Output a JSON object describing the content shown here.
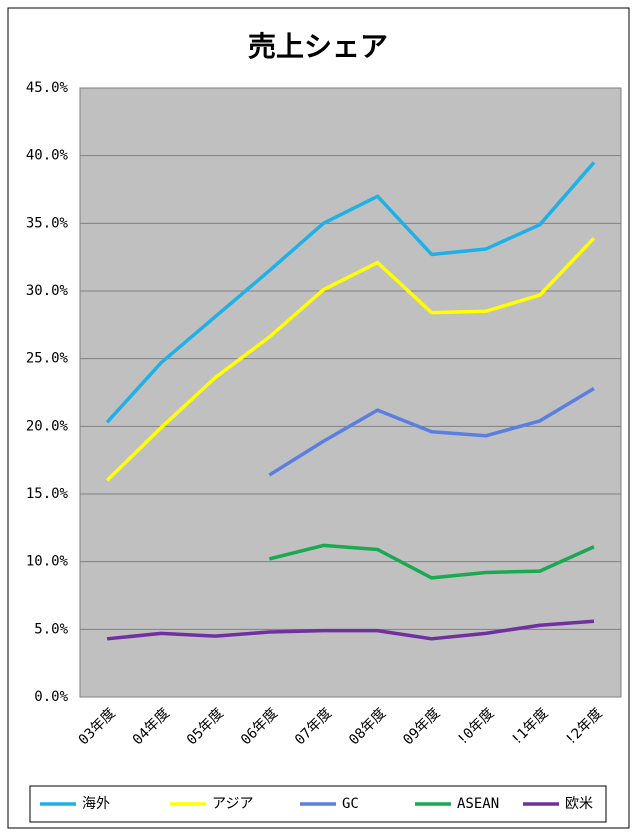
{
  "chart_data": {
    "type": "line",
    "title": "売上シェア",
    "categories": [
      "03年度",
      "04年度",
      "05年度",
      "06年度",
      "07年度",
      "08年度",
      "09年度",
      "!0年度",
      "!1年度",
      "!2年度"
    ],
    "series": [
      {
        "name": "海外",
        "color": "#1fb0e6",
        "values": [
          20.3,
          24.7,
          28.1,
          31.5,
          35.0,
          37.0,
          32.7,
          33.1,
          34.9,
          39.5
        ]
      },
      {
        "name": "アジア",
        "color": "#ffff00",
        "values": [
          16.0,
          19.9,
          23.6,
          26.6,
          30.1,
          32.1,
          28.4,
          28.5,
          29.7,
          33.9
        ]
      },
      {
        "name": "GC",
        "color": "#5b7fe0",
        "values": [
          null,
          null,
          null,
          16.4,
          18.9,
          21.2,
          19.6,
          19.3,
          20.4,
          22.8
        ]
      },
      {
        "name": "ASEAN",
        "color": "#1aa850",
        "values": [
          null,
          null,
          null,
          10.2,
          11.2,
          10.9,
          8.8,
          9.2,
          9.3,
          11.1
        ]
      },
      {
        "name": "欧米",
        "color": "#7030a0",
        "values": [
          4.3,
          4.7,
          4.5,
          4.8,
          4.9,
          4.9,
          4.3,
          4.7,
          5.3,
          5.6
        ]
      }
    ],
    "ylim": [
      0,
      45
    ],
    "yticks": [
      {
        "value": 0,
        "label": "0.0%"
      },
      {
        "value": 5,
        "label": "5.0%"
      },
      {
        "value": 10,
        "label": "10.0%"
      },
      {
        "value": 15,
        "label": "15.0%"
      },
      {
        "value": 20,
        "label": "20.0%"
      },
      {
        "value": 25,
        "label": "25.0%"
      },
      {
        "value": 30,
        "label": "30.0%"
      },
      {
        "value": 35,
        "label": "35.0%"
      },
      {
        "value": 40,
        "label": "40.0%"
      },
      {
        "value": 45,
        "label": "45.0%"
      }
    ],
    "grid": true,
    "legend": "bottom"
  }
}
